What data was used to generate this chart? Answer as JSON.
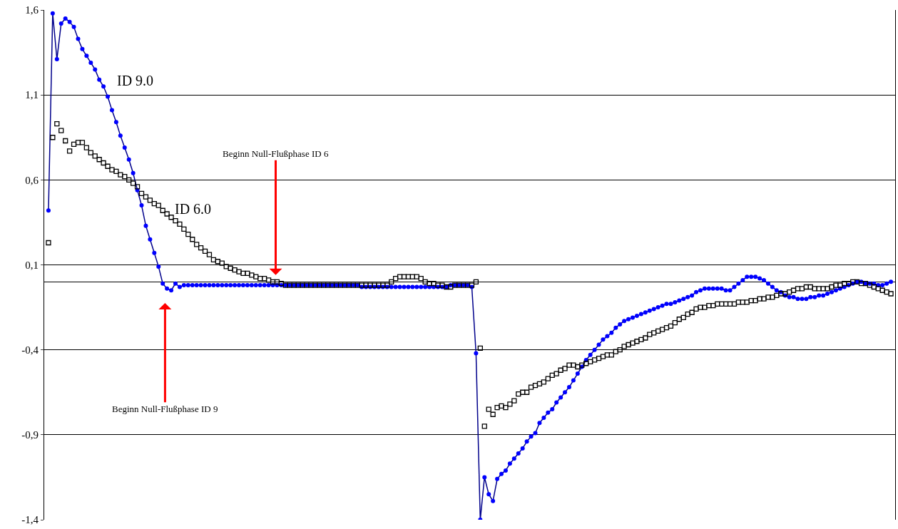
{
  "chart_data": {
    "type": "line",
    "categories": [
      null,
      null,
      null,
      null,
      null,
      null,
      null,
      null,
      null,
      null,
      null,
      null,
      null,
      null,
      null,
      null,
      null,
      null,
      null,
      null,
      null,
      null,
      null,
      null,
      null,
      null,
      null,
      null,
      null,
      null,
      null,
      null,
      null,
      null,
      null,
      null,
      null,
      null,
      null,
      null,
      null,
      null,
      null,
      null,
      null,
      null,
      null,
      null,
      null,
      null,
      null,
      null,
      null,
      null,
      null,
      null,
      null,
      null,
      null,
      null,
      null,
      null,
      null,
      null,
      null,
      null,
      null,
      null,
      null,
      null,
      null,
      null,
      null,
      null,
      null,
      null,
      null,
      null,
      null,
      null,
      null,
      null,
      null,
      null,
      null,
      null,
      null,
      null,
      null,
      null,
      null,
      null,
      null,
      null,
      null,
      null,
      null,
      null,
      null,
      null,
      null,
      null,
      null,
      null,
      null,
      null,
      null,
      null,
      null,
      null,
      null,
      null,
      null,
      null,
      null,
      null,
      null,
      null,
      null,
      null,
      null,
      null,
      null,
      null,
      null,
      null,
      null,
      null,
      null,
      null,
      null,
      null,
      null,
      null,
      null,
      null,
      null,
      null,
      null,
      null,
      null,
      null,
      null,
      null,
      null,
      null,
      null,
      null,
      null,
      null,
      null,
      null,
      null,
      null,
      null,
      null,
      null,
      null,
      null,
      null,
      null,
      null,
      null,
      null,
      null,
      null,
      null,
      null,
      null,
      null,
      null,
      null,
      null,
      null,
      null,
      null,
      null,
      null,
      null,
      null,
      null,
      null,
      null,
      null,
      null,
      null,
      null,
      null,
      null,
      null,
      null,
      null,
      null,
      null,
      null,
      null,
      null,
      null,
      null,
      null
    ],
    "series": [
      {
        "name": "ID 9.0",
        "marker": "circle",
        "color": "#0000ff",
        "values": [
          0.42,
          1.58,
          1.31,
          1.52,
          1.55,
          1.53,
          1.5,
          1.43,
          1.37,
          1.33,
          1.29,
          1.25,
          1.19,
          1.15,
          1.09,
          1.01,
          0.94,
          0.86,
          0.79,
          0.72,
          0.64,
          0.54,
          0.45,
          0.33,
          0.25,
          0.17,
          0.09,
          -0.01,
          -0.04,
          -0.05,
          -0.01,
          -0.03,
          -0.02,
          -0.02,
          -0.02,
          -0.02,
          -0.02,
          -0.02,
          -0.02,
          -0.02,
          -0.02,
          -0.02,
          -0.02,
          -0.02,
          -0.02,
          -0.02,
          -0.02,
          -0.02,
          -0.02,
          -0.02,
          -0.02,
          -0.02,
          -0.02,
          -0.02,
          -0.02,
          -0.02,
          -0.02,
          -0.02,
          -0.02,
          -0.02,
          -0.02,
          -0.02,
          -0.02,
          -0.02,
          -0.02,
          -0.02,
          -0.02,
          -0.02,
          -0.02,
          -0.02,
          -0.02,
          -0.02,
          -0.02,
          -0.02,
          -0.03,
          -0.03,
          -0.03,
          -0.03,
          -0.03,
          -0.03,
          -0.03,
          -0.03,
          -0.03,
          -0.03,
          -0.03,
          -0.03,
          -0.03,
          -0.03,
          -0.03,
          -0.03,
          -0.03,
          -0.03,
          -0.03,
          -0.03,
          -0.03,
          -0.02,
          -0.02,
          -0.02,
          -0.02,
          -0.02,
          -0.03,
          -0.42,
          -1.4,
          -1.15,
          -1.25,
          -1.29,
          -1.16,
          -1.13,
          -1.11,
          -1.07,
          -1.04,
          -1.01,
          -0.98,
          -0.94,
          -0.91,
          -0.89,
          -0.83,
          -0.8,
          -0.77,
          -0.75,
          -0.71,
          -0.68,
          -0.65,
          -0.62,
          -0.58,
          -0.54,
          -0.5,
          -0.46,
          -0.43,
          -0.4,
          -0.37,
          -0.34,
          -0.32,
          -0.3,
          -0.27,
          -0.25,
          -0.23,
          -0.22,
          -0.21,
          -0.2,
          -0.19,
          -0.18,
          -0.17,
          -0.16,
          -0.15,
          -0.14,
          -0.13,
          -0.13,
          -0.12,
          -0.11,
          -0.1,
          -0.09,
          -0.08,
          -0.06,
          -0.05,
          -0.04,
          -0.04,
          -0.04,
          -0.04,
          -0.04,
          -0.05,
          -0.05,
          -0.03,
          -0.01,
          0.01,
          0.03,
          0.03,
          0.03,
          0.02,
          0.01,
          -0.01,
          -0.03,
          -0.05,
          -0.06,
          -0.08,
          -0.09,
          -0.09,
          -0.1,
          -0.1,
          -0.1,
          -0.09,
          -0.09,
          -0.08,
          -0.08,
          -0.07,
          -0.06,
          -0.05,
          -0.04,
          -0.03,
          -0.02,
          -0.01,
          0.0,
          0.0,
          -0.01,
          -0.01,
          -0.01,
          -0.02,
          -0.02,
          -0.01,
          0.0
        ]
      },
      {
        "name": "ID 6.0",
        "type": "scatter",
        "marker": "square",
        "color": "#000000",
        "values": [
          0.23,
          0.85,
          0.93,
          0.89,
          0.83,
          0.77,
          0.81,
          0.82,
          0.82,
          0.79,
          0.76,
          0.74,
          0.72,
          0.7,
          0.68,
          0.66,
          0.65,
          0.63,
          0.62,
          0.6,
          0.58,
          0.56,
          0.52,
          0.5,
          0.48,
          0.46,
          0.45,
          0.42,
          0.4,
          0.38,
          0.36,
          0.34,
          0.31,
          0.28,
          0.25,
          0.22,
          0.2,
          0.18,
          0.16,
          0.13,
          0.12,
          0.11,
          0.09,
          0.08,
          0.07,
          0.06,
          0.05,
          0.05,
          0.04,
          0.03,
          0.02,
          0.02,
          0.01,
          0.0,
          0.0,
          -0.01,
          -0.02,
          -0.02,
          -0.02,
          -0.02,
          -0.02,
          -0.02,
          -0.02,
          -0.02,
          -0.02,
          -0.02,
          -0.02,
          -0.02,
          -0.02,
          -0.02,
          -0.02,
          -0.02,
          -0.02,
          -0.02,
          -0.02,
          -0.02,
          -0.02,
          -0.02,
          -0.02,
          -0.02,
          -0.02,
          0.0,
          0.02,
          0.03,
          0.03,
          0.03,
          0.03,
          0.03,
          0.02,
          0.0,
          -0.01,
          -0.01,
          -0.02,
          -0.02,
          -0.03,
          -0.03,
          -0.02,
          -0.02,
          -0.02,
          -0.02,
          -0.02,
          0.0,
          -0.39,
          -0.85,
          -0.75,
          -0.78,
          -0.74,
          -0.73,
          -0.74,
          -0.72,
          -0.7,
          -0.66,
          -0.65,
          -0.65,
          -0.62,
          -0.61,
          -0.6,
          -0.59,
          -0.57,
          -0.55,
          -0.54,
          -0.52,
          -0.51,
          -0.49,
          -0.49,
          -0.5,
          -0.49,
          -0.48,
          -0.47,
          -0.46,
          -0.45,
          -0.44,
          -0.43,
          -0.43,
          -0.41,
          -0.4,
          -0.38,
          -0.37,
          -0.36,
          -0.35,
          -0.34,
          -0.33,
          -0.31,
          -0.3,
          -0.29,
          -0.28,
          -0.27,
          -0.26,
          -0.24,
          -0.22,
          -0.21,
          -0.19,
          -0.18,
          -0.16,
          -0.15,
          -0.15,
          -0.14,
          -0.14,
          -0.13,
          -0.13,
          -0.13,
          -0.13,
          -0.13,
          -0.12,
          -0.12,
          -0.12,
          -0.11,
          -0.11,
          -0.1,
          -0.1,
          -0.09,
          -0.09,
          -0.08,
          -0.07,
          -0.07,
          -0.06,
          -0.05,
          -0.04,
          -0.04,
          -0.03,
          -0.03,
          -0.04,
          -0.04,
          -0.04,
          -0.04,
          -0.03,
          -0.02,
          -0.02,
          -0.01,
          -0.01,
          0.0,
          0.0,
          -0.01,
          -0.01,
          -0.02,
          -0.03,
          -0.04,
          -0.05,
          -0.06,
          -0.07
        ]
      }
    ],
    "ylim": [
      -1.4,
      1.6
    ],
    "yticks": [
      {
        "value": -1.4,
        "label": "-1,4"
      },
      {
        "value": -0.9,
        "label": "-0,9"
      },
      {
        "value": -0.4,
        "label": "-0,4"
      },
      {
        "value": 0.1,
        "label": "0,1"
      },
      {
        "value": 0.6,
        "label": "0,6"
      },
      {
        "value": 1.1,
        "label": "1,1"
      },
      {
        "value": 1.6,
        "label": "1,6"
      }
    ],
    "grid": "y",
    "tick_labels": "y",
    "legend": false,
    "annotations": [
      "Beginn Null-Flußphase ID 6",
      "Beginn Null-Flußphase ID 9"
    ]
  }
}
